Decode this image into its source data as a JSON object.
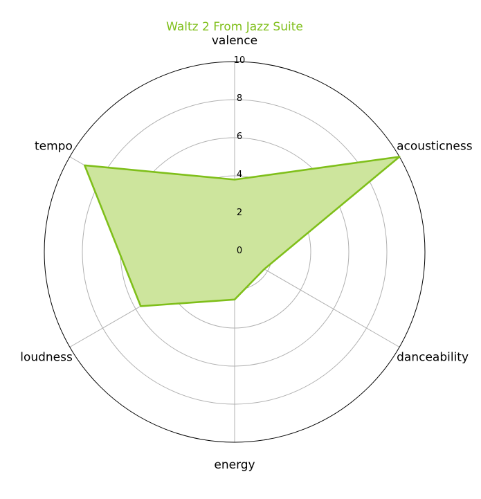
{
  "chart_data": {
    "type": "radar",
    "title": "Waltz 2 From Jazz Suite",
    "axes": [
      "valence",
      "acousticness",
      "danceability",
      "energy",
      "loudness",
      "tempo"
    ],
    "series": [
      {
        "values": [
          3.8,
          10.0,
          1.8,
          2.5,
          5.7,
          9.1
        ]
      }
    ],
    "r_ticks": [
      0,
      2,
      4,
      6,
      8,
      10
    ],
    "rlim": [
      0,
      10
    ],
    "grid": true,
    "colors": {
      "series": "#7fbf1a",
      "fill": "#cde59d",
      "grid": "#b0b0b0",
      "frame": "#000000"
    }
  }
}
